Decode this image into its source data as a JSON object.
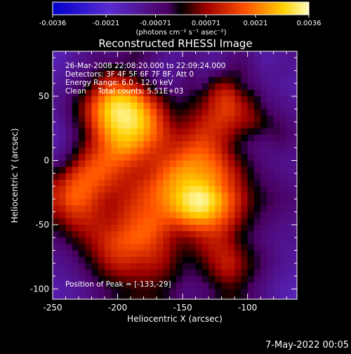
{
  "colorbar": {
    "ticks": [
      "-0.0036",
      "-0.0021",
      "-0.00071",
      "0.00071",
      "0.0021",
      "0.0036"
    ],
    "tick_values": [
      -0.0036,
      -0.0021,
      -0.00071,
      0.00071,
      0.0021,
      0.0036
    ],
    "range": [
      -0.0036,
      0.0036
    ],
    "unit_label": "(photons cm⁻² s⁻¹ asec⁻²)"
  },
  "chart_data": {
    "type": "heatmap",
    "title": "Reconstructed RHESSI Image",
    "xlabel": "Heliocentric X (arcsec)",
    "ylabel": "Heliocentric Y (arcsec)",
    "xlim": [
      -250,
      -62
    ],
    "ylim": [
      -108,
      85
    ],
    "xticks": [
      -250,
      -200,
      -150,
      -100
    ],
    "xtick_labels": [
      "-250",
      "-200",
      "-150",
      "-100"
    ],
    "yticks": [
      -100,
      -50,
      0,
      50
    ],
    "ytick_labels": [
      "-100",
      "-50",
      "0",
      "50"
    ],
    "annotations": [
      "26-Mar-2008 22:08:20.000 to 22:09:24.000",
      "Detectors: 3F 4F 5F 6F 7F 8F, Att 0",
      "Energy Range: 6.0 - 12.0 keV",
      "Clean     Total counts: 5.51E+03"
    ],
    "peak_label": "Position of Peak = [-133,-29]",
    "peak_position": [
      -133,
      -29
    ],
    "intensity_grid_note": "approximate coarse intensity map",
    "grid_x": [
      -245,
      -235,
      -225,
      -215,
      -205,
      -195,
      -185,
      -175,
      -165,
      -155,
      -145,
      -135,
      -125,
      -115,
      -105,
      -95,
      -85,
      -75,
      -65
    ],
    "grid_y": [
      80,
      70,
      60,
      50,
      40,
      30,
      20,
      10,
      0,
      -10,
      -20,
      -30,
      -40,
      -50,
      -60,
      -70,
      -80,
      -90,
      -100
    ],
    "intensity": [
      [
        -0.0016,
        -0.0012,
        -0.001,
        -0.0006,
        -0.0008,
        -0.0004,
        -0.0002,
        -0.0006,
        -0.001,
        -0.0012,
        -0.0008,
        -0.001,
        -0.0012,
        -0.0008,
        -0.0006,
        -0.001,
        -0.0014,
        -0.0012,
        -0.001
      ],
      [
        -0.0014,
        -0.001,
        -0.0008,
        -0.0002,
        0.0004,
        0.0,
        -0.0004,
        -0.0008,
        -0.0012,
        -0.001,
        -0.0006,
        -0.001,
        -0.0008,
        -0.0004,
        -0.0002,
        -0.0008,
        -0.0012,
        -0.001,
        -0.0012
      ],
      [
        -0.0012,
        -0.0008,
        -0.0004,
        0.0006,
        0.0014,
        0.0012,
        0.0006,
        -0.0002,
        -0.0008,
        -0.001,
        -0.0004,
        -0.0006,
        0.0004,
        0.0006,
        -0.0002,
        -0.0006,
        -0.001,
        -0.0012,
        -0.0014
      ],
      [
        -0.001,
        -0.0004,
        0.0004,
        0.0016,
        0.0026,
        0.0028,
        0.0022,
        0.001,
        0.0002,
        -0.0004,
        -0.0002,
        0.0002,
        0.001,
        0.0014,
        0.0006,
        0.0,
        -0.0008,
        -0.001,
        -0.0012
      ],
      [
        -0.001,
        -0.0002,
        0.0008,
        0.0022,
        0.0032,
        0.0034,
        0.003,
        0.002,
        0.0008,
        0.0,
        0.0002,
        0.0006,
        0.0012,
        0.0016,
        0.001,
        0.0004,
        -0.0004,
        -0.0008,
        -0.001
      ],
      [
        -0.0012,
        -0.0004,
        0.0006,
        0.002,
        0.003,
        0.0034,
        0.0032,
        0.0024,
        0.0012,
        0.0004,
        0.0006,
        0.001,
        0.0014,
        0.0012,
        0.0008,
        0.0006,
        0.0,
        -0.0004,
        -0.0008
      ],
      [
        -0.0014,
        -0.0006,
        0.0002,
        0.0016,
        0.0026,
        0.003,
        0.0028,
        0.0022,
        0.0014,
        0.0008,
        0.001,
        0.0014,
        0.0012,
        0.0008,
        0.0002,
        -0.0002,
        -0.0004,
        -0.0002,
        -0.0006
      ],
      [
        -0.0012,
        -0.0004,
        0.0006,
        0.0014,
        0.0022,
        0.0026,
        0.0022,
        0.0016,
        0.0012,
        0.0012,
        0.0016,
        0.0018,
        0.0014,
        0.0006,
        -0.0002,
        -0.0006,
        -0.0008,
        -0.0006,
        -0.0008
      ],
      [
        -0.0008,
        0.0002,
        0.0012,
        0.0018,
        0.002,
        0.0018,
        0.0014,
        0.0012,
        0.0014,
        0.0018,
        0.0022,
        0.0022,
        0.0018,
        0.001,
        0.0002,
        -0.0004,
        -0.0008,
        -0.001,
        -0.001
      ],
      [
        0.0002,
        0.0012,
        0.0018,
        0.002,
        0.0016,
        0.0012,
        0.001,
        0.0012,
        0.0018,
        0.0024,
        0.0026,
        0.0024,
        0.0022,
        0.0014,
        0.0006,
        -0.0002,
        -0.0006,
        -0.0008,
        -0.001
      ],
      [
        0.001,
        0.0018,
        0.002,
        0.0016,
        0.0012,
        0.001,
        0.0012,
        0.0016,
        0.0022,
        0.0026,
        0.003,
        0.003,
        0.0024,
        0.0016,
        0.0008,
        0.0,
        -0.0004,
        -0.0006,
        -0.0008
      ],
      [
        0.0012,
        0.002,
        0.0018,
        0.0012,
        0.0008,
        0.001,
        0.0014,
        0.0018,
        0.0022,
        0.0028,
        0.0034,
        0.0036,
        0.003,
        0.002,
        0.001,
        0.0002,
        -0.0002,
        -0.0004,
        -0.0006
      ],
      [
        0.0008,
        0.0014,
        0.0014,
        0.001,
        0.0008,
        0.0012,
        0.0016,
        0.0018,
        0.002,
        0.0024,
        0.003,
        0.0032,
        0.0026,
        0.0018,
        0.0008,
        0.0,
        -0.0004,
        -0.0006,
        -0.0008
      ],
      [
        0.0002,
        0.0008,
        0.001,
        0.001,
        0.001,
        0.0014,
        0.0018,
        0.002,
        0.0016,
        0.0014,
        0.0018,
        0.002,
        0.0018,
        0.0012,
        0.0004,
        -0.0002,
        -0.0006,
        -0.0008,
        -0.001
      ],
      [
        -0.0004,
        0.0002,
        0.0006,
        0.001,
        0.0014,
        0.0018,
        0.002,
        0.0018,
        0.0012,
        0.0006,
        0.0006,
        0.001,
        0.0012,
        0.0008,
        0.0,
        -0.0004,
        -0.0008,
        -0.001,
        -0.001
      ],
      [
        -0.0008,
        -0.0004,
        0.0002,
        0.0008,
        0.0014,
        0.0016,
        0.0016,
        0.0014,
        0.001,
        0.0004,
        0.0002,
        0.0006,
        0.001,
        0.001,
        0.0004,
        -0.0002,
        -0.0006,
        -0.001,
        -0.0012
      ],
      [
        -0.001,
        -0.0008,
        -0.0002,
        0.0004,
        0.001,
        0.0012,
        0.001,
        0.001,
        0.0008,
        0.0002,
        -0.0002,
        0.0002,
        0.0008,
        0.0012,
        0.0006,
        0.0,
        -0.0006,
        -0.001,
        -0.0012
      ],
      [
        -0.0012,
        -0.001,
        -0.0006,
        0.0,
        0.0004,
        0.0006,
        0.0006,
        0.0006,
        0.0004,
        0.0,
        -0.0004,
        -0.0002,
        0.0004,
        0.0008,
        0.0004,
        -0.0002,
        -0.0008,
        -0.0012,
        -0.0014
      ],
      [
        -0.0014,
        -0.0012,
        -0.001,
        -0.0006,
        -0.0002,
        0.0,
        0.0002,
        0.0002,
        0.0,
        -0.0004,
        -0.0008,
        -0.0006,
        -0.0002,
        0.0002,
        0.0,
        -0.0006,
        -0.001,
        -0.0014,
        -0.0016
      ]
    ]
  },
  "footer": {
    "date": "7-May-2022 00:05"
  }
}
